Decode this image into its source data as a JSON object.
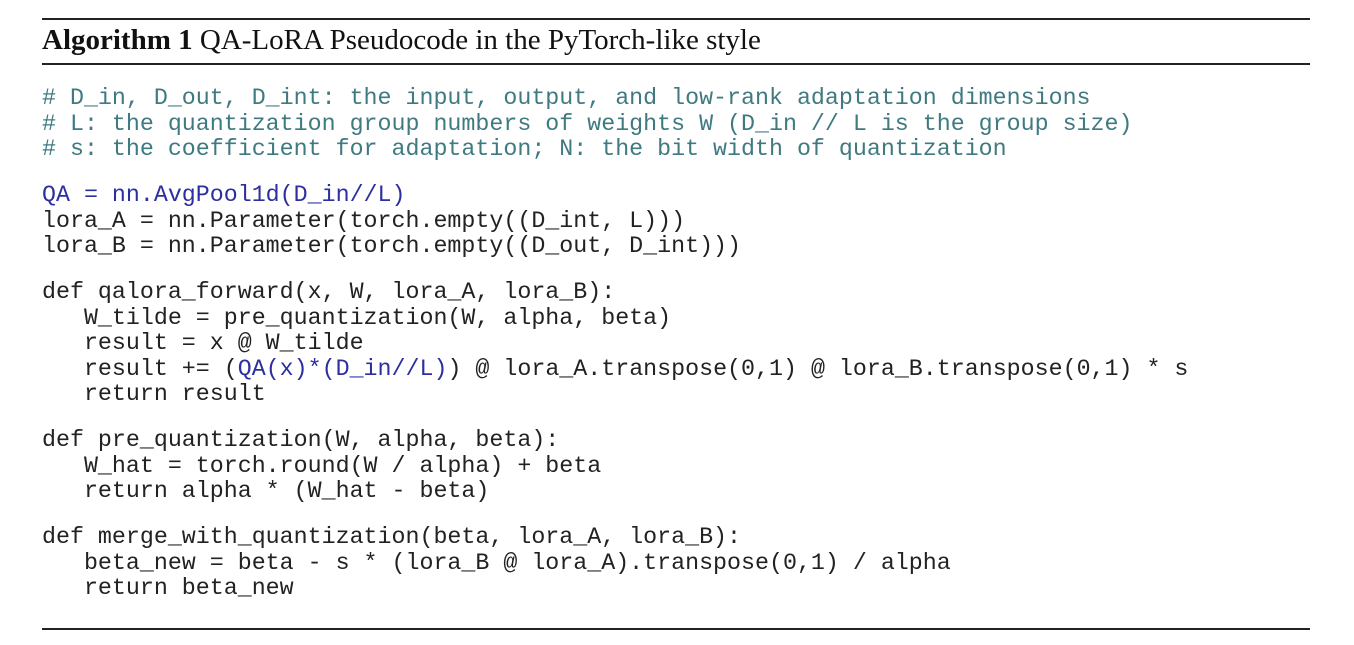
{
  "header": {
    "label": "Algorithm 1",
    "title": "QA-LoRA Pseudocode in the PyTorch-like style"
  },
  "code": {
    "blocks": [
      {
        "lines": [
          {
            "segments": [
              {
                "text": "# D_in, D_out, D_int: the input, output, and low-rank adaptation dimensions",
                "style": "comment"
              }
            ]
          },
          {
            "segments": [
              {
                "text": "# L: the quantization group numbers of weights W (D_in // L is the group size)",
                "style": "comment"
              }
            ]
          },
          {
            "segments": [
              {
                "text": "# s: the coefficient for adaptation; N: the bit width of quantization",
                "style": "comment"
              }
            ]
          }
        ]
      },
      {
        "lines": [
          {
            "segments": [
              {
                "text": "QA = nn.AvgPool1d(D_in//L)",
                "style": "qa"
              }
            ]
          },
          {
            "segments": [
              {
                "text": "lora_A = nn.Parameter(torch.empty((D_int, L)))",
                "style": "code"
              }
            ]
          },
          {
            "segments": [
              {
                "text": "lora_B = nn.Parameter(torch.empty((D_out, D_int)))",
                "style": "code"
              }
            ]
          }
        ]
      },
      {
        "lines": [
          {
            "segments": [
              {
                "text": "def qalora_forward(x, W, lora_A, lora_B):",
                "style": "code"
              }
            ]
          },
          {
            "segments": [
              {
                "text": "   W_tilde = pre_quantization(W, alpha, beta)",
                "style": "code"
              }
            ]
          },
          {
            "segments": [
              {
                "text": "   result = x @ W_tilde",
                "style": "code"
              }
            ]
          },
          {
            "segments": [
              {
                "text": "   result += (",
                "style": "code"
              },
              {
                "text": "QA(x)*(D_in//L)",
                "style": "qa"
              },
              {
                "text": ") @ lora_A.transpose(0,1) @ lora_B.transpose(0,1) * s",
                "style": "code"
              }
            ]
          },
          {
            "segments": [
              {
                "text": "   return result",
                "style": "code"
              }
            ]
          }
        ]
      },
      {
        "lines": [
          {
            "segments": [
              {
                "text": "def pre_quantization(W, alpha, beta):",
                "style": "code"
              }
            ]
          },
          {
            "segments": [
              {
                "text": "   W_hat = torch.round(W / alpha) + beta",
                "style": "code"
              }
            ]
          },
          {
            "segments": [
              {
                "text": "   return alpha * (W_hat - beta)",
                "style": "code"
              }
            ]
          }
        ]
      },
      {
        "lines": [
          {
            "segments": [
              {
                "text": "def merge_with_quantization(beta, lora_A, lora_B):",
                "style": "code"
              }
            ]
          },
          {
            "segments": [
              {
                "text": "   beta_new = beta - s * (lora_B @ lora_A).transpose(0,1) / alpha",
                "style": "code"
              }
            ]
          },
          {
            "segments": [
              {
                "text": "   return beta_new",
                "style": "code"
              }
            ]
          }
        ]
      }
    ]
  }
}
